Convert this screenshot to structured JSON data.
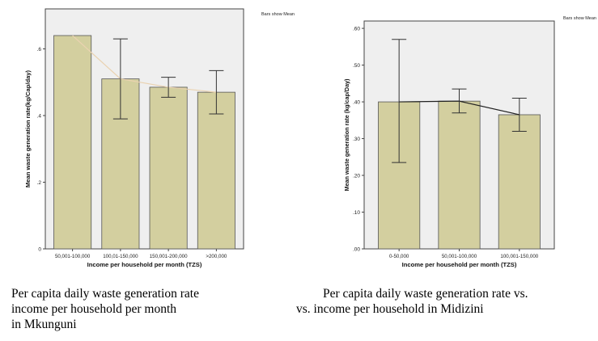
{
  "chart_data": [
    {
      "type": "bar",
      "annotation": "Bars show Mean",
      "xlabel": "Income per household per month (TZS)",
      "ylabel": "Mean waste generation rate(kg/Cap/day)",
      "categories": [
        "50,001-100,000",
        "100,01-150,000",
        "150,001-200,000",
        ">200,000"
      ],
      "values": [
        0.64,
        0.51,
        0.485,
        0.47
      ],
      "error_low": [
        null,
        0.39,
        0.455,
        0.405
      ],
      "error_high": [
        null,
        0.63,
        0.515,
        0.535
      ],
      "yticks": [
        0,
        0.2,
        0.4,
        0.6
      ],
      "ytick_labels": [
        "0",
        ".2",
        ".4",
        ".6"
      ],
      "ylim": [
        0,
        0.72
      ],
      "trend_line": true,
      "caption": [
        "Per capita daily waste generation rate",
        "income per household per month",
        "in Mkunguni"
      ]
    },
    {
      "type": "bar",
      "annotation": "Bars show Mean",
      "xlabel": "Income per household per month (TZS)",
      "ylabel": "Mean waste generation rate (kg/cap/Day)",
      "categories": [
        "0-50,000",
        "50,001-100,000",
        "100,001-150,000"
      ],
      "values": [
        0.4,
        0.402,
        0.365
      ],
      "error_low": [
        0.235,
        0.37,
        0.32
      ],
      "error_high": [
        0.57,
        0.435,
        0.41
      ],
      "yticks": [
        0,
        0.1,
        0.2,
        0.3,
        0.4,
        0.5,
        0.6
      ],
      "ytick_labels": [
        ".00",
        ".10",
        ".20",
        ".30",
        ".40",
        ".50",
        ".60"
      ],
      "ylim": [
        0,
        0.62
      ],
      "trend_line": true,
      "caption": [
        "Per capita daily waste generation rate vs.",
        "vs. income per household in Midizini"
      ]
    }
  ]
}
